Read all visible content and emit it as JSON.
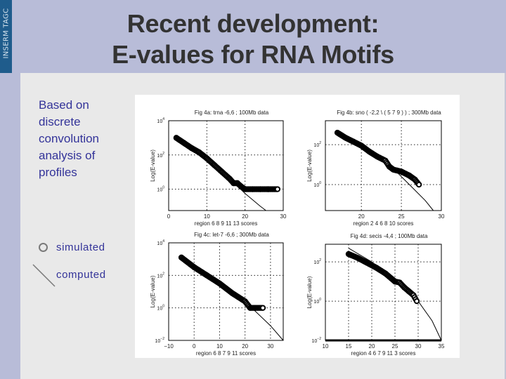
{
  "header": {
    "side_label": "INSERM TAGC",
    "title_line1": "Recent development:",
    "title_line2": "E-values for RNA Motifs"
  },
  "body": {
    "description_lines": [
      "Based on",
      "discrete",
      "convolution",
      "analysis of",
      "profiles"
    ]
  },
  "legend": {
    "items": [
      {
        "icon": "circle-marker-icon",
        "label": "simulated"
      },
      {
        "icon": "diagonal-line-icon",
        "label": "computed"
      }
    ]
  },
  "colors": {
    "title_band": "#b8bcd8",
    "side_strip": "#1f5c8c",
    "content_bg": "#e9e9e9",
    "text_accent": "#333399",
    "title_text": "#333333"
  },
  "chart_data": [
    {
      "type": "scatter",
      "title": "Fig 4a: trna  -6,6  ; 100Mb data",
      "xlabel": "region  6 8 9 11 13  scores",
      "ylabel": "Log(E-value)",
      "xlim": [
        0,
        30
      ],
      "ylim_log10": [
        -1.25,
        4
      ],
      "x_ticks": [
        "0",
        "10",
        "20",
        "30"
      ],
      "y_ticks": [
        "10^0",
        "10^2",
        "10^4"
      ],
      "grid": "dotted",
      "series": [
        {
          "name": "simulated",
          "marker": "circle",
          "x": [
            2,
            4,
            6,
            8,
            10,
            12,
            14,
            16,
            17,
            18,
            19,
            20,
            22,
            24,
            26,
            28.5
          ],
          "log10_y": [
            3.0,
            2.7,
            2.4,
            2.15,
            1.8,
            1.4,
            1.0,
            0.6,
            0.35,
            0.35,
            0.15,
            0,
            0,
            0,
            0,
            0
          ]
        },
        {
          "name": "computed",
          "marker": "line",
          "x": [
            2,
            10,
            16,
            20,
            24,
            25.5
          ],
          "log10_y": [
            3.0,
            1.8,
            0.6,
            -0.25,
            -1.0,
            -1.25
          ]
        }
      ]
    },
    {
      "type": "scatter",
      "title": "Fig 4b: sno ( -2,2 \\ ( 5 7 9 ) ) ; 300Mb data",
      "xlabel": "region  2 4 6 8 10  scores",
      "ylabel": "Log(E-value)",
      "xlim": [
        15.5,
        30
      ],
      "ylim_log10": [
        -1.3,
        3.2
      ],
      "x_ticks": [
        "20",
        "25",
        "30"
      ],
      "y_ticks": [
        "10^0",
        "10^2"
      ],
      "grid": "dotted",
      "series": [
        {
          "name": "simulated",
          "marker": "circle",
          "x": [
            17,
            18,
            19,
            20,
            21,
            22,
            23,
            23.5,
            24,
            25,
            26,
            26.7,
            27.2
          ],
          "log10_y": [
            2.6,
            2.35,
            2.15,
            1.95,
            1.65,
            1.4,
            1.2,
            0.9,
            0.75,
            0.65,
            0.45,
            0.25,
            0
          ]
        },
        {
          "name": "computed",
          "marker": "line",
          "x": [
            22,
            24,
            26,
            28,
            29
          ],
          "log10_y": [
            1.3,
            0.8,
            0.0,
            -0.8,
            -1.3
          ]
        }
      ]
    },
    {
      "type": "scatter",
      "title": "Fig 4c: let-7  -6,6  ; 300Mb data",
      "xlabel": "region  6 8 7 9 11  scores",
      "ylabel": "Log(E-value)",
      "xlim": [
        -10,
        35
      ],
      "ylim_log10": [
        -2,
        4
      ],
      "x_ticks": [
        "-10",
        "0",
        "10",
        "20",
        "30"
      ],
      "y_ticks": [
        "10^-2",
        "10^0",
        "10^2",
        "10^4"
      ],
      "grid": "dotted",
      "series": [
        {
          "name": "simulated",
          "marker": "circle",
          "x": [
            -5,
            0,
            5,
            10,
            15,
            20,
            22,
            24,
            27
          ],
          "log10_y": [
            3.1,
            2.5,
            2.0,
            1.5,
            0.9,
            0.4,
            0,
            0,
            0
          ]
        },
        {
          "name": "computed",
          "marker": "line",
          "x": [
            -5,
            10,
            22,
            30,
            35
          ],
          "log10_y": [
            3.1,
            1.5,
            0.1,
            -1.1,
            -2.0
          ]
        }
      ]
    },
    {
      "type": "scatter",
      "title": "Fig 4d: secis  -4,4  ; 100Mb data",
      "xlabel": "region  4 6 7 9 11 3  scores",
      "ylabel": "Log(E-value)",
      "xlim": [
        10,
        35
      ],
      "ylim_log10": [
        -2,
        2.9
      ],
      "x_ticks": [
        "10",
        "15",
        "20",
        "25",
        "30",
        "35"
      ],
      "y_ticks": [
        "10^-2",
        "10^0",
        "10^2"
      ],
      "grid": "dotted",
      "series": [
        {
          "name": "simulated",
          "marker": "circle",
          "x": [
            15,
            17,
            19,
            21,
            23,
            25,
            26,
            27,
            28,
            29,
            29.7
          ],
          "log10_y": [
            2.4,
            2.2,
            1.95,
            1.7,
            1.4,
            1.0,
            0.95,
            0.7,
            0.5,
            0.3,
            0
          ]
        },
        {
          "name": "computed",
          "marker": "line",
          "x": [
            15,
            20,
            25,
            30,
            33,
            35
          ],
          "log10_y": [
            2.7,
            2.0,
            1.0,
            0.0,
            -1.0,
            -2.0
          ]
        }
      ]
    }
  ]
}
